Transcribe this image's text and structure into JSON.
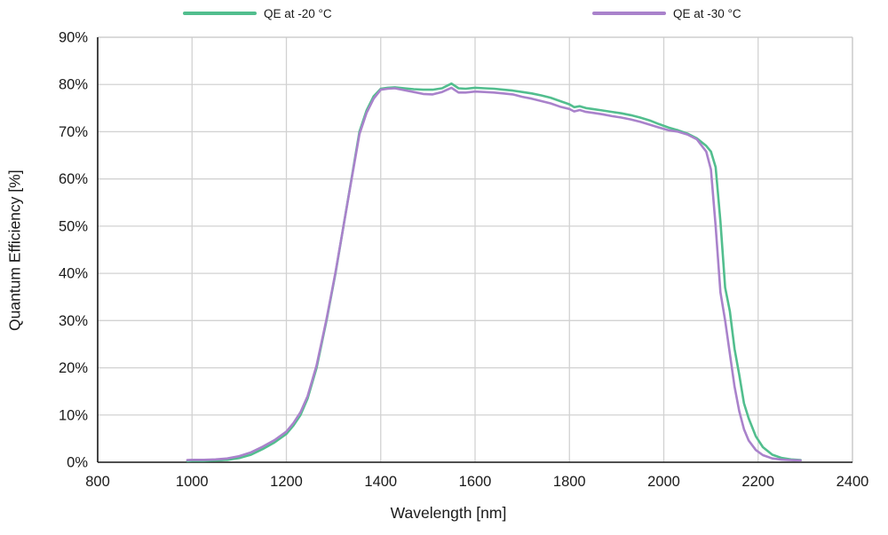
{
  "chart_data": {
    "type": "line",
    "title": "",
    "xlabel": "Wavelength [nm]",
    "ylabel": "Quantum Efficiency [%]",
    "xlim": [
      800,
      2400
    ],
    "ylim": [
      0,
      90
    ],
    "x_ticks": [
      800,
      1000,
      1200,
      1400,
      1600,
      1800,
      2000,
      2200,
      2400
    ],
    "y_ticks": [
      0,
      10,
      20,
      30,
      40,
      50,
      60,
      70,
      80,
      90
    ],
    "y_tick_labels": [
      "0%",
      "10%",
      "20%",
      "30%",
      "40%",
      "50%",
      "60%",
      "70%",
      "80%",
      "90%"
    ],
    "grid": true,
    "legend_position": "top",
    "colors": {
      "grid": "#d2d2d2",
      "axis": "#1a1a1a",
      "plot_border": "#c9c9c9",
      "background": "#ffffff"
    },
    "x": [
      990,
      1000,
      1025,
      1050,
      1075,
      1100,
      1125,
      1150,
      1175,
      1200,
      1215,
      1230,
      1245,
      1264,
      1285,
      1304,
      1321,
      1338,
      1355,
      1370,
      1385,
      1400,
      1415,
      1430,
      1450,
      1470,
      1490,
      1510,
      1530,
      1550,
      1565,
      1580,
      1600,
      1620,
      1640,
      1660,
      1680,
      1700,
      1720,
      1740,
      1760,
      1780,
      1800,
      1810,
      1822,
      1835,
      1850,
      1870,
      1890,
      1910,
      1930,
      1950,
      1970,
      1990,
      2010,
      2030,
      2050,
      2070,
      2090,
      2100,
      2110,
      2120,
      2130,
      2140,
      2150,
      2160,
      2170,
      2180,
      2195,
      2210,
      2230,
      2250,
      2270,
      2290
    ],
    "series": [
      {
        "name": "QE at -20 °C",
        "color": "#52be8e",
        "values": [
          0.25,
          0.3,
          0.3,
          0.35,
          0.5,
          0.9,
          1.6,
          2.8,
          4.2,
          6.0,
          7.8,
          10.0,
          13.5,
          20.0,
          30.0,
          40.0,
          50.0,
          60.0,
          70.0,
          74.5,
          77.5,
          79.1,
          79.3,
          79.4,
          79.2,
          79.0,
          78.9,
          78.9,
          79.2,
          80.2,
          79.2,
          79.1,
          79.3,
          79.2,
          79.1,
          78.9,
          78.7,
          78.4,
          78.1,
          77.7,
          77.2,
          76.5,
          75.8,
          75.2,
          75.4,
          75.0,
          74.8,
          74.5,
          74.2,
          73.9,
          73.5,
          73.0,
          72.4,
          71.6,
          70.9,
          70.3,
          69.6,
          68.6,
          67.0,
          65.8,
          62.5,
          51.0,
          37.0,
          32.0,
          24.0,
          18.5,
          12.5,
          9.3,
          5.5,
          3.2,
          1.6,
          0.9,
          0.6,
          0.45
        ]
      },
      {
        "name": "QE at -30 °C",
        "color": "#a982cb",
        "values": [
          0.45,
          0.5,
          0.5,
          0.6,
          0.8,
          1.3,
          2.1,
          3.3,
          4.7,
          6.5,
          8.3,
          10.6,
          14.0,
          20.5,
          30.3,
          40.2,
          50.0,
          59.8,
          69.5,
          74.0,
          77.0,
          78.9,
          79.1,
          79.2,
          78.8,
          78.4,
          78.0,
          77.9,
          78.4,
          79.3,
          78.3,
          78.3,
          78.5,
          78.4,
          78.3,
          78.1,
          77.9,
          77.4,
          77.0,
          76.5,
          76.0,
          75.3,
          74.8,
          74.3,
          74.6,
          74.2,
          74.0,
          73.7,
          73.3,
          73.0,
          72.6,
          72.1,
          71.5,
          70.9,
          70.3,
          70.0,
          69.4,
          68.4,
          65.8,
          62.0,
          50.0,
          36.0,
          30.0,
          23.0,
          16.0,
          10.8,
          7.0,
          4.6,
          2.6,
          1.5,
          0.8,
          0.55,
          0.45,
          0.4
        ]
      }
    ]
  }
}
